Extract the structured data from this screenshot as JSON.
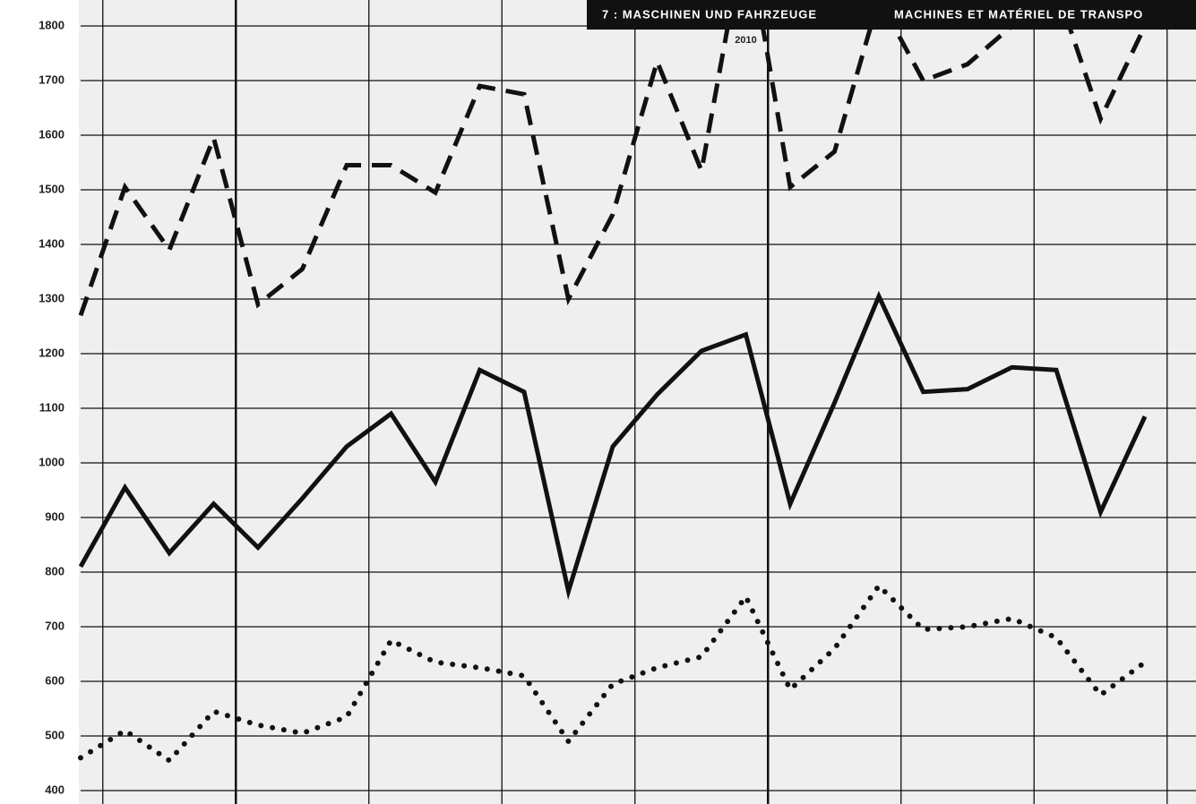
{
  "chart_data": {
    "type": "line",
    "title": "7 : MASCHINEN UND FAHRZEUGE",
    "subtitle": "MACHINES ET MATÉRIEL DE TRANSPO",
    "categories": [
      null,
      null,
      null,
      null,
      null,
      null,
      null,
      null,
      null,
      null,
      null,
      null,
      null,
      null,
      null,
      "2010",
      null,
      null,
      null,
      null,
      null,
      null,
      null,
      null,
      null
    ],
    "series": [
      {
        "color": "#111111",
        "style": "dashed",
        "values": [
          1270,
          1505,
          1390,
          1595,
          1290,
          1355,
          1545,
          1545,
          1495,
          1690,
          1675,
          1300,
          1455,
          1735,
          1535,
          1980,
          1505,
          1570,
          1850,
          1700,
          1730,
          1800,
          1870,
          1630,
          1800
        ]
      },
      {
        "color": "#111111",
        "style": "solid",
        "values": [
          810,
          955,
          835,
          925,
          845,
          935,
          1030,
          1090,
          965,
          1170,
          1130,
          765,
          1030,
          1125,
          1205,
          1235,
          925,
          1110,
          1305,
          1130,
          1135,
          1175,
          1170,
          910,
          1085
        ]
      },
      {
        "color": "#111111",
        "style": "dotted",
        "values": [
          460,
          510,
          455,
          545,
          520,
          505,
          535,
          675,
          635,
          625,
          610,
          490,
          595,
          625,
          645,
          755,
          585,
          660,
          775,
          695,
          700,
          715,
          680,
          575,
          635
        ]
      }
    ],
    "ylim": [
      400,
      1800
    ],
    "yticks": [
      400,
      500,
      600,
      700,
      800,
      900,
      1000,
      1100,
      1200,
      1300,
      1400,
      1500,
      1600,
      1700,
      1800
    ],
    "grid": true
  }
}
